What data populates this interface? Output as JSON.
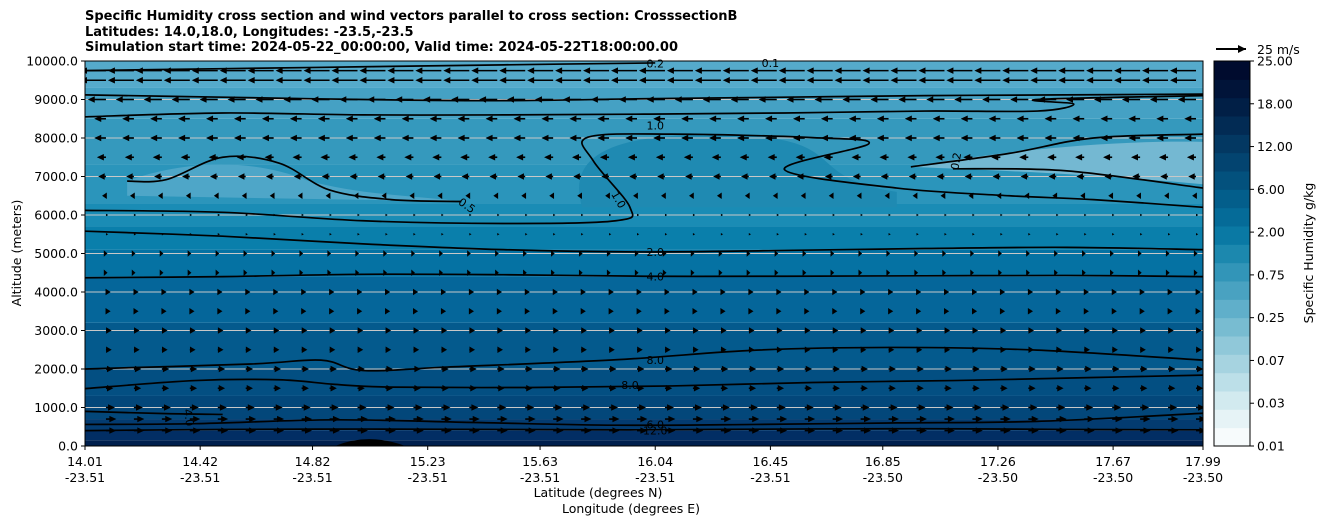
{
  "chart_data": {
    "type": "contour",
    "title": [
      "Specific Humidity cross section and wind vectors parallel to cross section: CrosssectionB",
      "Latitudes: 14.0,18.0, Longitudes: -23.5,-23.5",
      "Simulation start time: 2024-05-22_00:00:00, Valid time: 2024-05-22T18:00:00.00"
    ],
    "ylabel": "Altitude (meters)",
    "xlabel_lat": "Latitude (degrees N)",
    "xlabel_lon": "Longitude (degrees E)",
    "ylim": [
      0,
      10000
    ],
    "xlim": [
      14.01,
      17.99
    ],
    "y_ticks": [
      {
        "value": 0,
        "label": "0.0"
      },
      {
        "value": 1000,
        "label": "1000.0"
      },
      {
        "value": 2000,
        "label": "2000.0"
      },
      {
        "value": 3000,
        "label": "3000.0"
      },
      {
        "value": 4000,
        "label": "4000.0"
      },
      {
        "value": 5000,
        "label": "5000.0"
      },
      {
        "value": 6000,
        "label": "6000.0"
      },
      {
        "value": 7000,
        "label": "7000.0"
      },
      {
        "value": 8000,
        "label": "8000.0"
      },
      {
        "value": 9000,
        "label": "9000.0"
      },
      {
        "value": 10000,
        "label": "10000.0"
      }
    ],
    "x_ticks": [
      {
        "value": 14.01,
        "lat": "14.01",
        "lon": "-23.51"
      },
      {
        "value": 14.42,
        "lat": "14.42",
        "lon": "-23.51"
      },
      {
        "value": 14.82,
        "lat": "14.82",
        "lon": "-23.51"
      },
      {
        "value": 15.23,
        "lat": "15.23",
        "lon": "-23.51"
      },
      {
        "value": 15.63,
        "lat": "15.63",
        "lon": "-23.51"
      },
      {
        "value": 16.04,
        "lat": "16.04",
        "lon": "-23.51"
      },
      {
        "value": 16.45,
        "lat": "16.45",
        "lon": "-23.51"
      },
      {
        "value": 16.85,
        "lat": "16.85",
        "lon": "-23.50"
      },
      {
        "value": 17.26,
        "lat": "17.26",
        "lon": "-23.50"
      },
      {
        "value": 17.67,
        "lat": "17.67",
        "lon": "-23.50"
      },
      {
        "value": 17.99,
        "lat": "17.99",
        "lon": "-23.50"
      }
    ],
    "colorbar": {
      "label": "Specific Humidity g/kg",
      "tick_labels": [
        "0.01",
        "0.03",
        "0.07",
        "0.25",
        "0.75",
        "2.00",
        "6.00",
        "12.00",
        "18.00",
        "25.00"
      ],
      "colors": [
        "#f7fbfc",
        "#e6f3f6",
        "#d2eaef",
        "#bcdfe8",
        "#a6d3e0",
        "#90c8d9",
        "#78bcd1",
        "#60afca",
        "#49a2c1",
        "#3295b8",
        "#1c88ae",
        "#0a79a4",
        "#056b98",
        "#035e8b",
        "#03517d",
        "#034470",
        "#033862",
        "#022b54",
        "#011f46",
        "#011439",
        "#000b2e"
      ]
    },
    "quiver_key": {
      "label": "25 m/s",
      "value": 25
    },
    "contour_lines": [
      {
        "level": "12.0",
        "points": [
          [
            14.01,
            400
          ],
          [
            14.5,
            430
          ],
          [
            15.0,
            440
          ],
          [
            15.5,
            430
          ],
          [
            16.0,
            420
          ],
          [
            16.5,
            440
          ],
          [
            17.0,
            450
          ],
          [
            17.5,
            430
          ],
          [
            17.99,
            420
          ]
        ]
      },
      {
        "level": "6.0",
        "points": [
          [
            14.01,
            560
          ],
          [
            14.4,
            580
          ],
          [
            14.9,
            680
          ],
          [
            15.4,
            610
          ],
          [
            15.9,
            540
          ],
          [
            16.4,
            560
          ],
          [
            16.9,
            600
          ],
          [
            17.4,
            640
          ],
          [
            17.99,
            850
          ]
        ]
      },
      {
        "level": "4.0",
        "points": [
          [
            14.01,
            900
          ],
          [
            14.3,
            840
          ],
          [
            14.5,
            820
          ]
        ]
      },
      {
        "level": "8.0",
        "points": [
          [
            14.01,
            1490
          ],
          [
            14.4,
            1700
          ],
          [
            14.7,
            1720
          ],
          [
            14.9,
            1600
          ],
          [
            15.1,
            1530
          ],
          [
            15.6,
            1520
          ],
          [
            16.1,
            1560
          ],
          [
            16.6,
            1650
          ],
          [
            17.1,
            1700
          ],
          [
            17.6,
            1780
          ],
          [
            17.99,
            1840
          ]
        ]
      },
      {
        "level": "8.0",
        "points": [
          [
            14.01,
            2000
          ],
          [
            14.6,
            2130
          ],
          [
            14.85,
            2230
          ],
          [
            15.0,
            1960
          ],
          [
            15.3,
            2050
          ],
          [
            15.9,
            2240
          ],
          [
            16.4,
            2490
          ],
          [
            16.9,
            2560
          ],
          [
            17.4,
            2490
          ],
          [
            17.99,
            2230
          ]
        ]
      },
      {
        "level": "4.0",
        "points": [
          [
            14.01,
            4370
          ],
          [
            14.5,
            4400
          ],
          [
            15.0,
            4460
          ],
          [
            15.5,
            4450
          ],
          [
            16.0,
            4410
          ],
          [
            16.5,
            4410
          ],
          [
            17.0,
            4420
          ],
          [
            17.5,
            4430
          ],
          [
            17.99,
            4400
          ]
        ]
      },
      {
        "level": "2.0",
        "points": [
          [
            14.01,
            5580
          ],
          [
            14.5,
            5450
          ],
          [
            15.0,
            5250
          ],
          [
            15.5,
            5100
          ],
          [
            16.0,
            5040
          ],
          [
            16.5,
            5080
          ],
          [
            17.0,
            5130
          ],
          [
            17.5,
            5160
          ],
          [
            17.99,
            5100
          ]
        ]
      },
      {
        "level": "1.0",
        "points": [
          [
            14.01,
            6120
          ],
          [
            14.5,
            6070
          ],
          [
            15.0,
            5850
          ],
          [
            15.5,
            5780
          ],
          [
            15.9,
            5850
          ],
          [
            15.95,
            6200
          ],
          [
            15.82,
            7400
          ],
          [
            15.8,
            8020
          ],
          [
            16.1,
            8100
          ],
          [
            16.6,
            8010
          ],
          [
            16.8,
            7850
          ],
          [
            16.5,
            7180
          ],
          [
            16.9,
            6700
          ],
          [
            17.3,
            6500
          ],
          [
            17.6,
            6400
          ],
          [
            17.99,
            6200
          ]
        ]
      },
      {
        "level": "0.5",
        "points": [
          [
            14.16,
            6880
          ],
          [
            14.3,
            6920
          ],
          [
            14.5,
            7500
          ],
          [
            14.7,
            7350
          ],
          [
            14.88,
            6650
          ],
          [
            15.1,
            6400
          ],
          [
            15.35,
            6350
          ]
        ]
      },
      {
        "level": "0.2",
        "points": [
          [
            16.95,
            7250
          ],
          [
            17.3,
            7600
          ],
          [
            17.6,
            8000
          ],
          [
            17.99,
            8100
          ]
        ]
      },
      {
        "level": "0.2",
        "points": [
          [
            17.1,
            7200
          ],
          [
            17.5,
            7150
          ],
          [
            17.99,
            6700
          ]
        ]
      },
      {
        "level": "0.5",
        "points": [
          [
            14.01,
            8550
          ],
          [
            14.5,
            8650
          ],
          [
            15.0,
            8600
          ],
          [
            15.5,
            8600
          ],
          [
            16.0,
            8620
          ],
          [
            16.5,
            8650
          ],
          [
            17.0,
            8700
          ],
          [
            17.4,
            8700
          ],
          [
            17.53,
            8880
          ],
          [
            17.4,
            9000
          ],
          [
            17.99,
            9100
          ]
        ]
      },
      {
        "level": "0.2",
        "points": [
          [
            14.01,
            9120
          ],
          [
            14.5,
            9060
          ],
          [
            15.0,
            9000
          ],
          [
            15.5,
            8970
          ],
          [
            16.0,
            9020
          ],
          [
            16.5,
            9060
          ],
          [
            17.0,
            9100
          ],
          [
            17.5,
            9120
          ],
          [
            17.99,
            9140
          ]
        ]
      },
      {
        "level": "0.2",
        "points": [
          [
            14.01,
            9750
          ],
          [
            14.5,
            9800
          ],
          [
            15.0,
            9850
          ],
          [
            15.5,
            9900
          ],
          [
            16.04,
            9950
          ]
        ]
      }
    ],
    "contour_labels": [
      {
        "text": "0.2",
        "x": 16.04,
        "y": 9930
      },
      {
        "text": "0.1",
        "x": 16.45,
        "y": 9950
      },
      {
        "text": "1.0",
        "x": 16.04,
        "y": 8330
      },
      {
        "text": "0.2",
        "x": 17.11,
        "y": 7400,
        "rotate": -80
      },
      {
        "text": "0.5",
        "x": 15.37,
        "y": 6250,
        "rotate": 35
      },
      {
        "text": "1.0",
        "x": 15.91,
        "y": 6400,
        "rotate": 60
      },
      {
        "text": "2.0",
        "x": 16.04,
        "y": 5040
      },
      {
        "text": "4.0",
        "x": 16.04,
        "y": 4400
      },
      {
        "text": "8.0",
        "x": 16.04,
        "y": 2240
      },
      {
        "text": "8.0",
        "x": 15.95,
        "y": 1580
      },
      {
        "text": "4.0",
        "x": 14.38,
        "y": 740,
        "rotate": 80
      },
      {
        "text": "6.0",
        "x": 16.04,
        "y": 560
      },
      {
        "text": "12.0",
        "x": 16.04,
        "y": 400
      }
    ],
    "terrain": {
      "x_start": 14.9,
      "x_peak": 15.02,
      "x_end": 15.15,
      "peak": 200
    }
  }
}
